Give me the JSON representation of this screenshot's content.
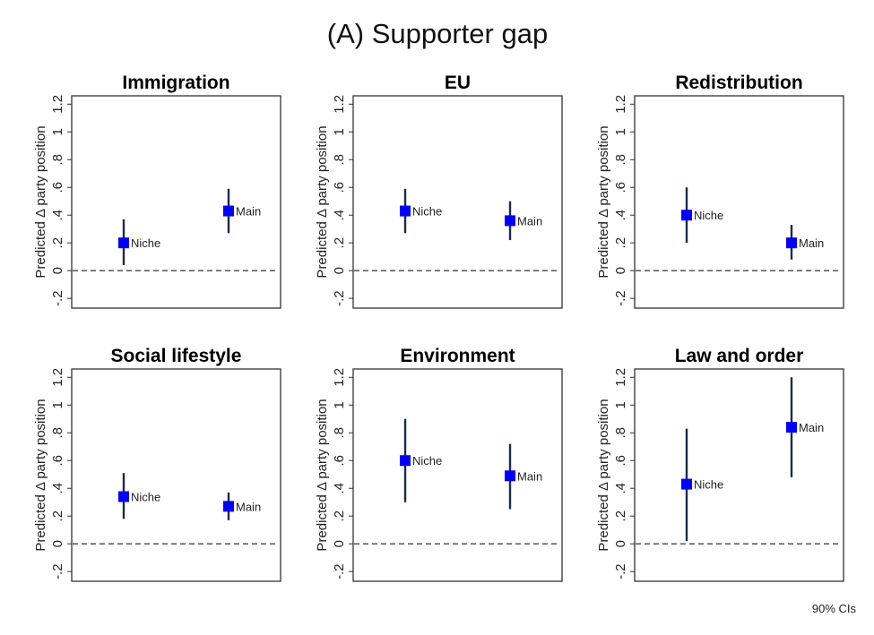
{
  "chart_data": {
    "type": "scatter",
    "subtype": "coefficient-plot-with-confidence-intervals",
    "title": "(A) Supporter gap",
    "note": "90% CIs",
    "ylabel": "Predicted Δ party position",
    "ylim": [
      -0.27,
      1.26
    ],
    "yticks": [
      -0.2,
      0,
      0.2,
      0.4,
      0.6,
      0.8,
      1,
      1.2
    ],
    "ytick_labels": [
      "-.2",
      "0",
      ".2",
      ".4",
      ".6",
      ".8",
      "1",
      "1.2"
    ],
    "reference_line": {
      "y": 0,
      "style": "dashed"
    },
    "categories": [
      "Niche",
      "Main"
    ],
    "grid": false,
    "colors": {
      "marker": "#0000ff",
      "ci": "#1c2b4c",
      "reference": "#444444",
      "frame": "#333333"
    },
    "panels": [
      {
        "title": "Immigration",
        "points": [
          {
            "label": "Niche",
            "value": 0.2,
            "ci_low": 0.04,
            "ci_high": 0.37
          },
          {
            "label": "Main",
            "value": 0.43,
            "ci_low": 0.27,
            "ci_high": 0.59
          }
        ]
      },
      {
        "title": "EU",
        "points": [
          {
            "label": "Niche",
            "value": 0.43,
            "ci_low": 0.27,
            "ci_high": 0.59
          },
          {
            "label": "Main",
            "value": 0.36,
            "ci_low": 0.22,
            "ci_high": 0.5
          }
        ]
      },
      {
        "title": "Redistribution",
        "points": [
          {
            "label": "Niche",
            "value": 0.4,
            "ci_low": 0.2,
            "ci_high": 0.6
          },
          {
            "label": "Main",
            "value": 0.2,
            "ci_low": 0.08,
            "ci_high": 0.33
          }
        ]
      },
      {
        "title": "Social lifestyle",
        "points": [
          {
            "label": "Niche",
            "value": 0.34,
            "ci_low": 0.18,
            "ci_high": 0.51
          },
          {
            "label": "Main",
            "value": 0.27,
            "ci_low": 0.17,
            "ci_high": 0.37
          }
        ]
      },
      {
        "title": "Environment",
        "points": [
          {
            "label": "Niche",
            "value": 0.6,
            "ci_low": 0.3,
            "ci_high": 0.9
          },
          {
            "label": "Main",
            "value": 0.49,
            "ci_low": 0.25,
            "ci_high": 0.72
          }
        ]
      },
      {
        "title": "Law and order",
        "points": [
          {
            "label": "Niche",
            "value": 0.43,
            "ci_low": 0.02,
            "ci_high": 0.83
          },
          {
            "label": "Main",
            "value": 0.84,
            "ci_low": 0.48,
            "ci_high": 1.2
          }
        ]
      }
    ]
  }
}
